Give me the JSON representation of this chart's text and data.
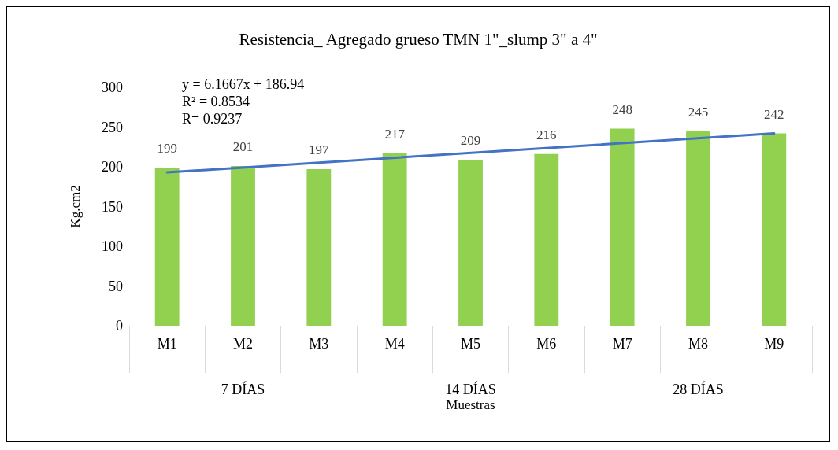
{
  "chart_data": {
    "type": "bar",
    "title": "Resistencia_ Agregado grueso TMN 1\"_slump 3\" a 4\"",
    "xlabel": "Muestras",
    "ylabel": "Kg.cm2",
    "categories": [
      "M1",
      "M2",
      "M3",
      "M4",
      "M5",
      "M6",
      "M7",
      "M8",
      "M9"
    ],
    "series": [
      {
        "color": "#92d050",
        "values": [
          199,
          201,
          197,
          217,
          209,
          216,
          248,
          245,
          242
        ],
        "value_labels": [
          "199",
          "201",
          "197",
          "217",
          "209",
          "216",
          "248",
          "245",
          "242"
        ]
      },
      {
        "type": "line",
        "color": "#4472c4",
        "x": [
          "M1",
          "M9"
        ],
        "values": [
          193,
          242
        ]
      }
    ],
    "ylim": [
      0,
      300
    ],
    "yticks": [
      0,
      50,
      100,
      150,
      200,
      250,
      300
    ],
    "grid": false,
    "marker": "none",
    "annotations": [
      "y = 6.1667x + 186.94\nR² = 0.8534\nR= 0.9237",
      "7 DÍAS",
      "14 DÍAS",
      "28 DÍAS"
    ]
  }
}
